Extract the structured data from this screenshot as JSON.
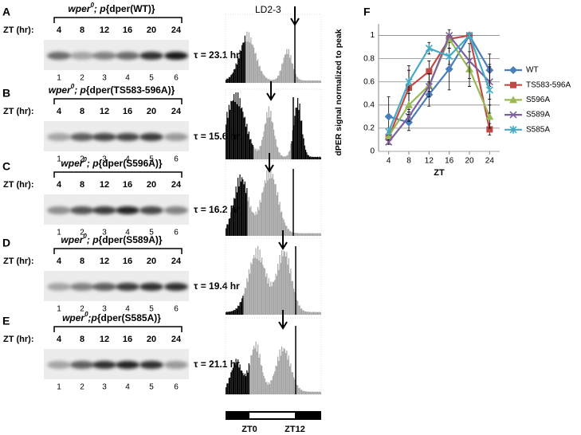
{
  "panels": [
    {
      "letter": "A",
      "gene": "wper",
      "sup": "0",
      "italic_rest": "; p",
      "construct": "{dper(WT)}",
      "zt_label": "ZT (hr):",
      "zt": [
        "4",
        "8",
        "12",
        "16",
        "20",
        "24"
      ],
      "lanes": [
        "1",
        "2",
        "3",
        "4",
        "5",
        "6"
      ],
      "tau": "τ = 23.1 hr"
    },
    {
      "letter": "B",
      "gene": "wper",
      "sup": "0",
      "italic_rest": "; p",
      "construct": "{dper(TS583-596A)}",
      "zt_label": "ZT (hr):",
      "zt": [
        "4",
        "8",
        "12",
        "16",
        "20",
        "24"
      ],
      "lanes": [
        "1",
        "2",
        "3",
        "4",
        "5",
        "6"
      ],
      "tau": "τ = 15.6 hr"
    },
    {
      "letter": "C",
      "gene": "wper",
      "sup": "0",
      "italic_rest": "; p",
      "construct": "{dper(S596A)}",
      "zt_label": "ZT (hr):",
      "zt": [
        "4",
        "8",
        "12",
        "16",
        "20",
        "24"
      ],
      "lanes": [
        "1",
        "2",
        "3",
        "4",
        "5",
        "6"
      ],
      "tau": "τ = 16.2 hr"
    },
    {
      "letter": "D",
      "gene": "wper",
      "sup": "0",
      "italic_rest": "; p",
      "construct": "{dper(S589A)}",
      "zt_label": "ZT (hr):",
      "zt": [
        "4",
        "8",
        "12",
        "16",
        "20",
        "24"
      ],
      "lanes": [
        "1",
        "2",
        "3",
        "4",
        "5",
        "6"
      ],
      "tau": "τ = 19.4 hr"
    },
    {
      "letter": "E",
      "gene": "wper",
      "sup": "0",
      "italic_rest": ";p",
      "construct": "{dper(S585A)}",
      "zt_label": "ZT (hr):",
      "zt": [
        "4",
        "8",
        "12",
        "16",
        "20",
        "24"
      ],
      "lanes": [
        "1",
        "2",
        "3",
        "4",
        "5",
        "6"
      ],
      "tau": "τ = 21.1 hr"
    }
  ],
  "actogram": {
    "title": "LD2-3",
    "zt0": "ZT0",
    "zt12": "ZT12"
  },
  "chart_data": {
    "type": "line",
    "letter": "F",
    "x_label": "ZT",
    "y_label": "dPER signal normalized to peak",
    "x": [
      4,
      8,
      12,
      16,
      20,
      24
    ],
    "xlim": [
      2,
      26
    ],
    "xticks": [
      4,
      8,
      12,
      16,
      20,
      24
    ],
    "ylim": [
      0,
      1.1
    ],
    "yticks": [
      0,
      0.2,
      0.4,
      0.6,
      0.8,
      1
    ],
    "grid": true,
    "legend": "right",
    "series": [
      {
        "name": "WT",
        "color": "#4a7ebb",
        "marker": "diamond",
        "values": [
          0.3,
          0.25,
          0.49,
          0.71,
          1.0,
          0.7
        ],
        "errors": [
          0.17,
          0.07,
          0.1,
          0.18,
          0,
          0.14
        ]
      },
      {
        "name": "TS583-596A",
        "color": "#be4b48",
        "marker": "square",
        "values": [
          0.12,
          0.55,
          0.69,
          0.97,
          1.0,
          0.19
        ],
        "errors": [
          0.05,
          0.19,
          0.09,
          0.03,
          0,
          0.05
        ]
      },
      {
        "name": "S596A",
        "color": "#98b954",
        "marker": "triangle",
        "values": [
          0.13,
          0.4,
          0.57,
          0.97,
          0.71,
          0.3
        ],
        "errors": [
          0.03,
          0.1,
          0.1,
          0.08,
          0.15,
          0.1
        ]
      },
      {
        "name": "S589A",
        "color": "#7d60a0",
        "marker": "x",
        "values": [
          0.08,
          0.3,
          0.56,
          1.0,
          0.78,
          0.6
        ],
        "errors": [
          0.02,
          0.04,
          0.04,
          0,
          0.15,
          0.15
        ]
      },
      {
        "name": "S585A",
        "color": "#46aac5",
        "marker": "star",
        "values": [
          0.17,
          0.6,
          0.89,
          0.82,
          1.0,
          0.53
        ],
        "errors": [
          0.03,
          0.1,
          0.05,
          0.07,
          0,
          0.2
        ]
      }
    ]
  }
}
